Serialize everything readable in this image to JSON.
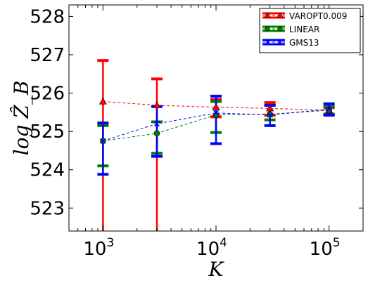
{
  "chart_data": {
    "type": "line",
    "title": "",
    "xlabel": "K",
    "ylabel": "log Ẑ_B",
    "x_scale": "log",
    "xlim": [
      500,
      200000
    ],
    "ylim": [
      522.4,
      528.3
    ],
    "x_ticks": [
      1000,
      10000,
      100000
    ],
    "x_tick_labels": [
      {
        "base": "10",
        "exp": "3"
      },
      {
        "base": "10",
        "exp": "4"
      },
      {
        "base": "10",
        "exp": "5"
      }
    ],
    "y_ticks": [
      523,
      524,
      525,
      526,
      527,
      528
    ],
    "y_tick_labels": [
      "523",
      "524",
      "525",
      "526",
      "527",
      "528"
    ],
    "grid": false,
    "legend_position": "top-right",
    "series": [
      {
        "name": "VAROPT0.009",
        "color": "#ff0000",
        "marker": "triangle",
        "line_style": "dashed",
        "x": [
          1000,
          3000,
          10000,
          30000,
          100000
        ],
        "y": [
          525.78,
          525.68,
          525.63,
          525.6,
          525.55
        ],
        "y_low": [
          521.9,
          521.9,
          525.38,
          525.42,
          525.42
        ],
        "y_high": [
          526.85,
          526.37,
          525.83,
          525.75,
          525.62
        ]
      },
      {
        "name": "LINEAR",
        "color": "#008000",
        "marker": "circle",
        "line_style": "dashed",
        "x": [
          1000,
          3000,
          10000,
          30000,
          100000
        ],
        "y": [
          524.75,
          524.95,
          525.43,
          525.45,
          525.55
        ],
        "y_low": [
          524.1,
          524.43,
          524.97,
          525.3,
          525.45
        ],
        "y_high": [
          525.15,
          525.25,
          525.78,
          525.68,
          525.65
        ]
      },
      {
        "name": "GMS13",
        "color": "#0000ff",
        "marker": "x",
        "line_style": "dashed",
        "x": [
          1000,
          3000,
          10000,
          30000,
          100000
        ],
        "y": [
          524.75,
          525.2,
          525.48,
          525.43,
          525.58
        ],
        "y_low": [
          523.88,
          524.35,
          524.68,
          525.15,
          525.43
        ],
        "y_high": [
          525.22,
          525.65,
          525.92,
          525.68,
          525.72
        ]
      }
    ]
  }
}
